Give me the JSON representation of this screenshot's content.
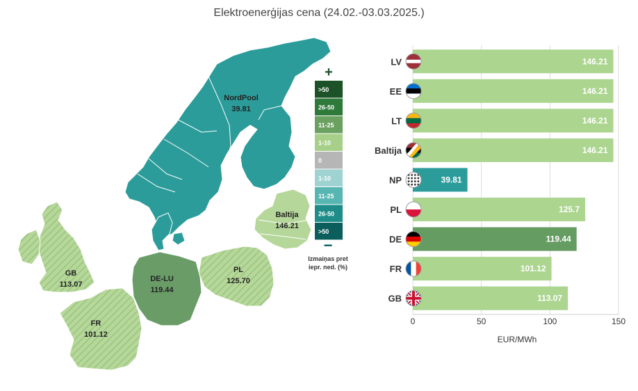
{
  "title": "Elektroenerģijas cena (24.02.-03.03.2025.)",
  "map": {
    "regions": [
      {
        "id": "nordpool",
        "name": "NordPool",
        "value": "39.81",
        "color": "#2b9c9a"
      },
      {
        "id": "baltija",
        "name": "Baltija",
        "value": "146.21",
        "color": "#b6d79a"
      },
      {
        "id": "gb",
        "name": "GB",
        "value": "113.07",
        "color": "#b6d79a"
      },
      {
        "id": "fr",
        "name": "FR",
        "value": "101.12",
        "color": "#b6d79a"
      },
      {
        "id": "delu",
        "name": "DE-LU",
        "value": "119.44",
        "color": "#6a9c68"
      },
      {
        "id": "pl",
        "name": "PL",
        "value": "125.70",
        "color": "#b6d79a"
      }
    ],
    "legend": {
      "plus": "+",
      "minus": "−",
      "items": [
        {
          "label": ">50",
          "color": "#1d5127"
        },
        {
          "label": "26-50",
          "color": "#2e7a3b"
        },
        {
          "label": "11-25",
          "color": "#6ba160"
        },
        {
          "label": "1-10",
          "color": "#a7cf8a"
        },
        {
          "label": "0",
          "color": "#b6b6b6"
        },
        {
          "label": "1-10",
          "color": "#9fd3d1"
        },
        {
          "label": "11-25",
          "color": "#57b6b2"
        },
        {
          "label": "26-50",
          "color": "#1e8d89"
        },
        {
          "label": ">50",
          "color": "#0b5e5b"
        }
      ],
      "caption_line1": "Izmaiņas pret",
      "caption_line2": "iepr. ned. (%)"
    }
  },
  "chart_data": {
    "type": "bar",
    "orientation": "horizontal",
    "categories": [
      "LV",
      "EE",
      "LT",
      "Baltija",
      "NP",
      "PL",
      "DE",
      "FR",
      "GB"
    ],
    "values": [
      146.21,
      146.21,
      146.21,
      146.21,
      39.81,
      125.7,
      119.44,
      101.12,
      113.07
    ],
    "value_labels": [
      "146.21",
      "146.21",
      "146.21",
      "146.21",
      "39.81",
      "125.7",
      "119.44",
      "101.12",
      "113.07"
    ],
    "bar_colors": [
      "#acd590",
      "#acd590",
      "#acd590",
      "#acd590",
      "#2b9c9a",
      "#acd590",
      "#649c62",
      "#acd590",
      "#acd590"
    ],
    "flags": [
      "lv-flag",
      "ee-flag",
      "lt-flag",
      "baltic-flag",
      "np-logo",
      "pl-flag",
      "de-flag",
      "fr-flag",
      "gb-flag"
    ],
    "xlim": [
      0,
      150
    ],
    "xticks": [
      0,
      50,
      100,
      150
    ],
    "xlabel": "EUR/MWh",
    "grid": true
  }
}
